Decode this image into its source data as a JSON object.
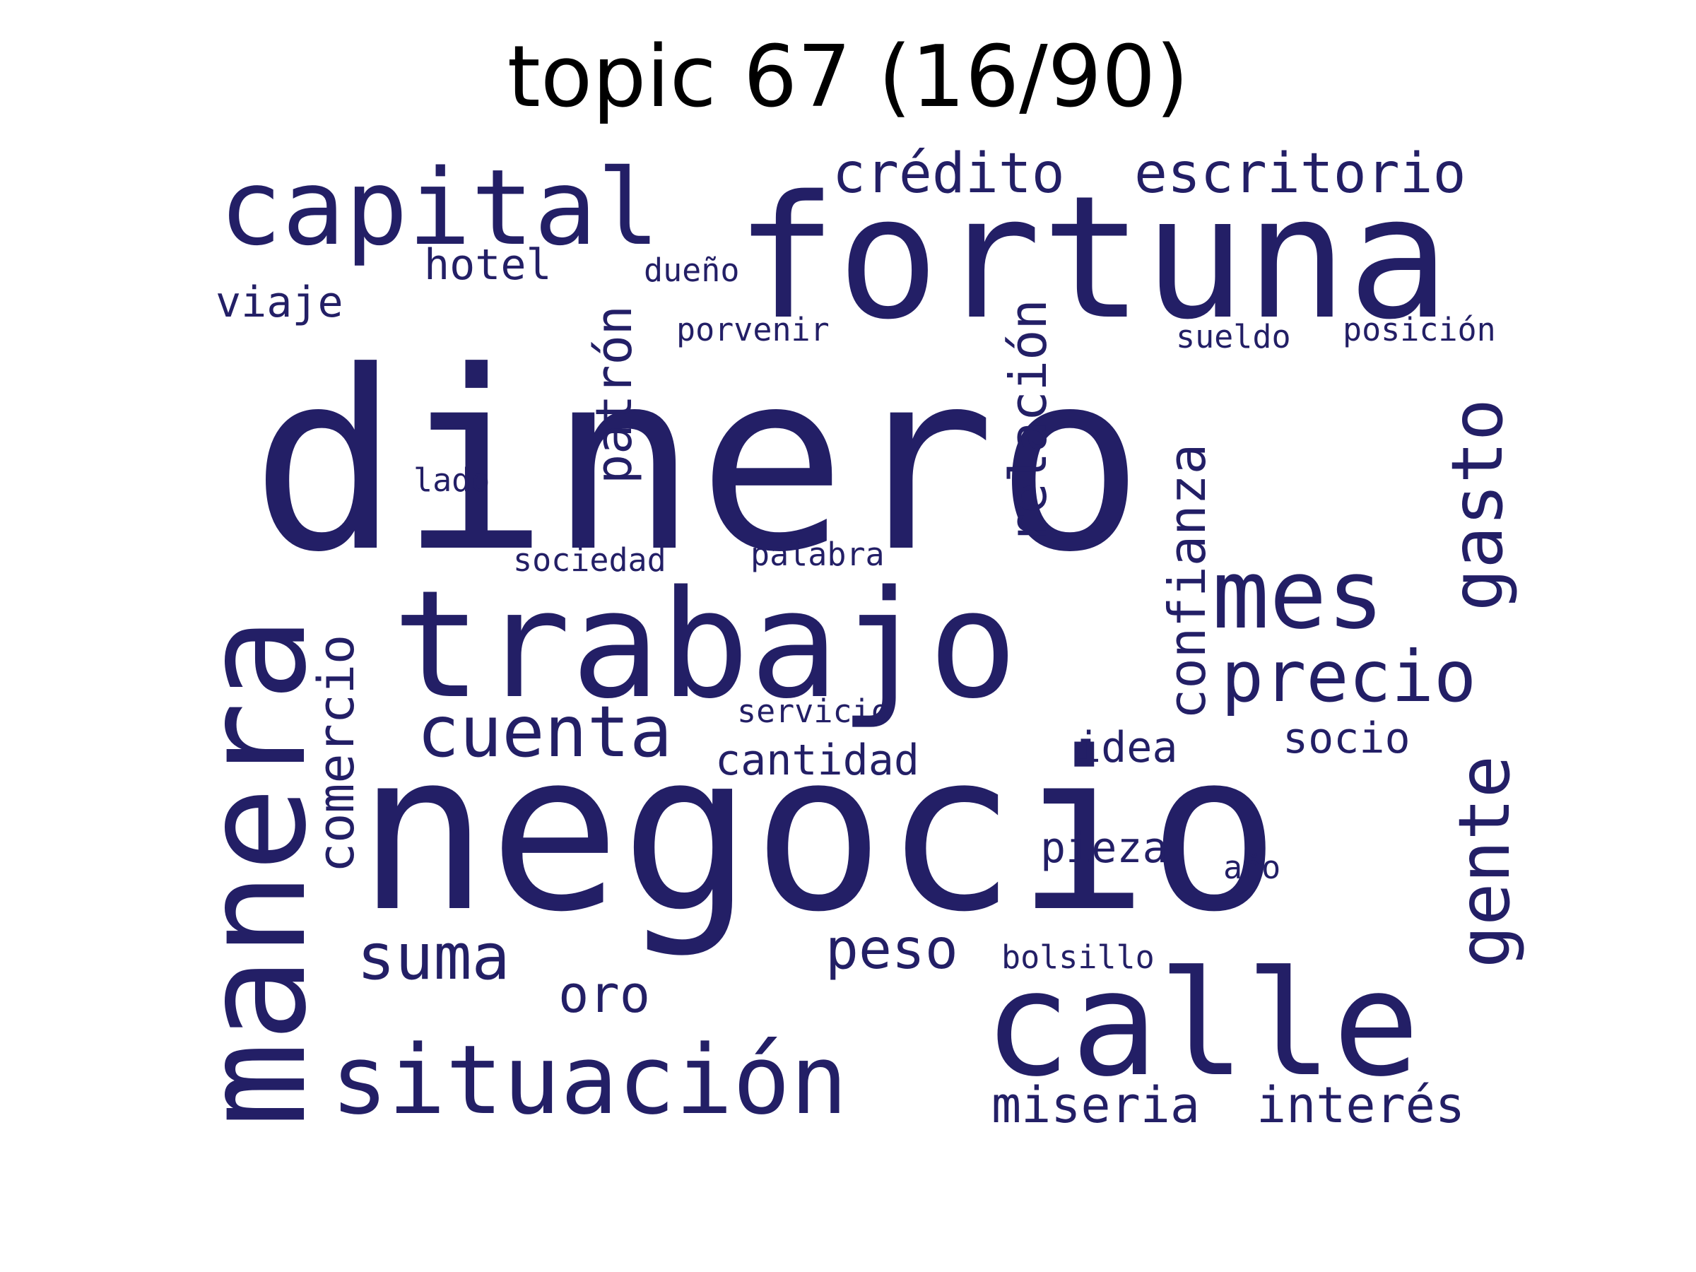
{
  "title": "topic 67 (16/90)",
  "word_color": "#231f66",
  "words": [
    {
      "text": "dinero",
      "weight": 1.0
    },
    {
      "text": "negocio",
      "weight": 0.95
    },
    {
      "text": "fortuna",
      "weight": 0.72
    },
    {
      "text": "trabajo",
      "weight": 0.6
    },
    {
      "text": "manera",
      "weight": 0.56
    },
    {
      "text": "calle",
      "weight": 0.55
    },
    {
      "text": "capital",
      "weight": 0.4
    },
    {
      "text": "situación",
      "weight": 0.37
    },
    {
      "text": "mes",
      "weight": 0.33
    },
    {
      "text": "gente",
      "weight": 0.3
    },
    {
      "text": "precio",
      "weight": 0.3
    },
    {
      "text": "gasto",
      "weight": 0.3
    },
    {
      "text": "cuenta",
      "weight": 0.29
    },
    {
      "text": "suma",
      "weight": 0.26
    },
    {
      "text": "relación",
      "weight": 0.24
    },
    {
      "text": "confianza",
      "weight": 0.24
    },
    {
      "text": "comercio",
      "weight": 0.23
    },
    {
      "text": "patrón",
      "weight": 0.23
    },
    {
      "text": "crédito",
      "weight": 0.21
    },
    {
      "text": "escritorio",
      "weight": 0.21
    },
    {
      "text": "peso",
      "weight": 0.2
    },
    {
      "text": "oro",
      "weight": 0.19
    },
    {
      "text": "miseria",
      "weight": 0.19
    },
    {
      "text": "interés",
      "weight": 0.19
    },
    {
      "text": "cantidad",
      "weight": 0.17
    },
    {
      "text": "hotel",
      "weight": 0.16
    },
    {
      "text": "pieza",
      "weight": 0.16
    },
    {
      "text": "viaje",
      "weight": 0.16
    },
    {
      "text": "idea",
      "weight": 0.16
    },
    {
      "text": "socio",
      "weight": 0.16
    },
    {
      "text": "sociedad",
      "weight": 0.12
    },
    {
      "text": "palabra",
      "weight": 0.12
    },
    {
      "text": "porvenir",
      "weight": 0.12
    },
    {
      "text": "dueño",
      "weight": 0.12
    },
    {
      "text": "sueldo",
      "weight": 0.12
    },
    {
      "text": "posición",
      "weight": 0.12
    },
    {
      "text": "servicio",
      "weight": 0.12
    },
    {
      "text": "bolsillo",
      "weight": 0.12
    },
    {
      "text": "lado",
      "weight": 0.12
    },
    {
      "text": "año",
      "weight": 0.12
    }
  ]
}
